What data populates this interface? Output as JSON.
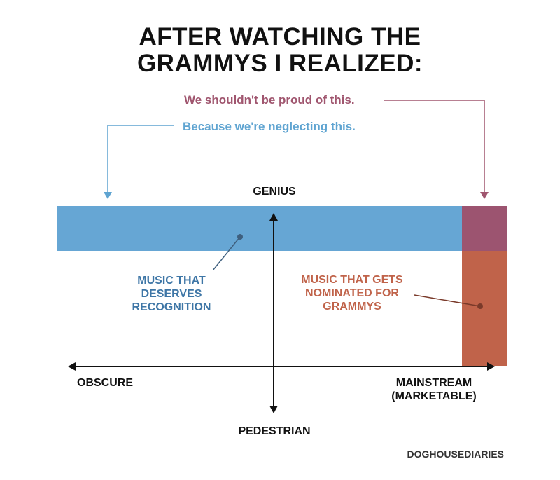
{
  "title": {
    "line1": "AFTER WATCHING THE",
    "line2": "GRAMMYS I REALIZED:"
  },
  "annotations": {
    "proud": "We shouldn't be proud of this.",
    "neglect": "Because we're neglecting this."
  },
  "axes": {
    "top": "GENIUS",
    "bottom": "PEDESTRIAN",
    "left": "OBSCURE",
    "right_line1": "MAINSTREAM",
    "right_line2": "(MARKETABLE)"
  },
  "regions": {
    "deserves": {
      "line1": "MUSIC THAT",
      "line2": "DESERVES",
      "line3": "RECOGNITION"
    },
    "nominated": {
      "line1": "MUSIC THAT GETS",
      "line2": "NOMINATED FOR",
      "line3": "GRAMMYS"
    }
  },
  "credit": "DOGHOUSEDIARIES",
  "colors": {
    "deserves_blue": "#66A6D4",
    "deserves_label": "#3E76A6",
    "nominated_orange": "#C0634A",
    "overlap_purple": "#9C5470",
    "proud_text": "#A0566F",
    "neglect_text": "#5FA4D1",
    "axis": "#111111"
  }
}
